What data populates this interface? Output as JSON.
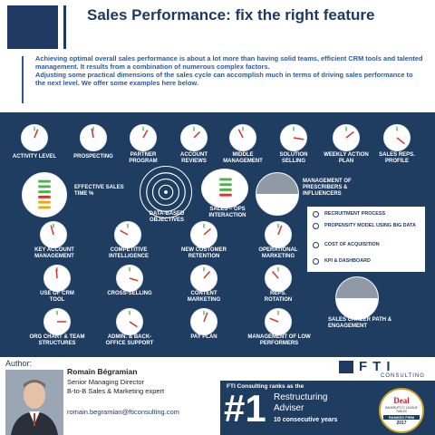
{
  "header": {
    "title": "Sales Performance: fix the right feature",
    "intro_p1": "Achieving optimal overall sales performance is about a lot more than having solid teams, efficient CRM tools and talented management. It results from a combination of numerous complex factors.",
    "intro_p2": "Adjusting some practical dimensions of the sales cycle can accomplish much in terms of driving sales performance to the next level. We offer some examples here below."
  },
  "gauges": [
    {
      "label": "Activity level"
    },
    {
      "label": "Prospecting"
    },
    {
      "label": "Partner program"
    },
    {
      "label": "Account reviews"
    },
    {
      "label": "Middle management"
    },
    {
      "label": "Solution selling"
    },
    {
      "label": "Weekly action plan"
    },
    {
      "label": "Sales reps. profile"
    },
    {
      "label": "Effective sales time %"
    },
    {
      "label": "Data-based objectives"
    },
    {
      "label": "Sales – ops interaction"
    },
    {
      "label": "Management of prescribers & influencers"
    },
    {
      "label": "Key account management"
    },
    {
      "label": "Competitive intelligence"
    },
    {
      "label": "New customer retention"
    },
    {
      "label": "Operational marketing"
    },
    {
      "label": "Use of CRM tool"
    },
    {
      "label": "Cross-selling"
    },
    {
      "label": "Content marketing"
    },
    {
      "label": "Reps. rotation"
    },
    {
      "label": "Org chart & team structures"
    },
    {
      "label": "Admin. & back-office support"
    },
    {
      "label": "Pay plan"
    },
    {
      "label": "Management of low performers"
    },
    {
      "label": "Sales career path & engagement"
    }
  ],
  "legend": [
    {
      "label": "Recruitment process"
    },
    {
      "label": "Propensity model using big data"
    },
    {
      "label": "Cost of acquisition"
    },
    {
      "label": "KPI & dashboard"
    }
  ],
  "author": {
    "section_label": "Author:",
    "name": "Romain Bégramian",
    "role": "Senior Managing Director",
    "tagline": "B-to-B Sales & Marketing expert",
    "email": "romain.begramian@fticonsulting.com"
  },
  "fti": {
    "logo_text": "FTI",
    "logo_sub": "CONSULTING",
    "heading": "FTI Consulting ranks as the",
    "rank_number": "#1",
    "rank_title_1": "Restructuring",
    "rank_title_2": "Adviser",
    "rank_years": "10 consecutive years",
    "badge_top": "Deal",
    "badge_mid": "BANKRUPTCY LEAGUE TABLES",
    "badge_rank": "RANKED FIRM",
    "badge_year": "2017"
  },
  "colors": {
    "navy": "#1f3c61",
    "title_blue": "#1e3a63",
    "intro_blue": "#2a5aa0",
    "needle_red": "#d7322c",
    "tick_green": "#4caf50"
  }
}
